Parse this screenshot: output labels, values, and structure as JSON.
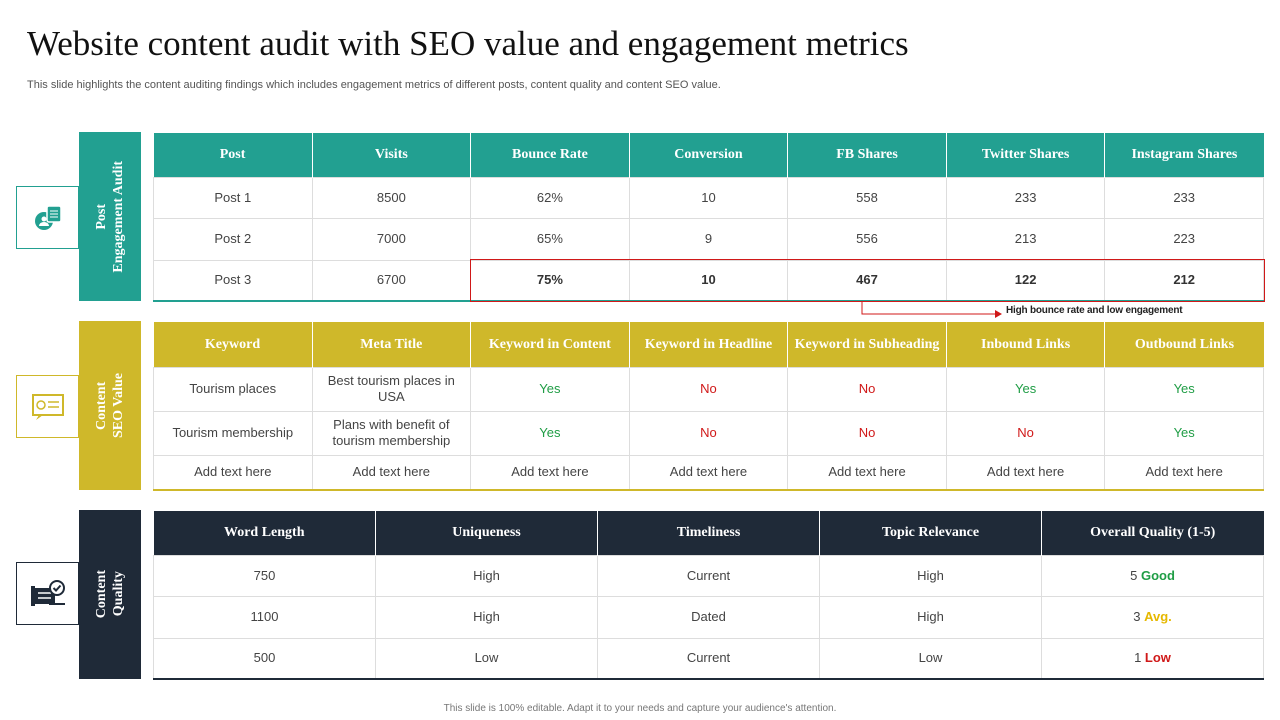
{
  "title": "Website content audit with SEO value and engagement metrics",
  "subtitle": "This slide highlights the content auditing findings which includes engagement metrics of different posts, content quality and content SEO value.",
  "engagement": {
    "label_lines": [
      "Post",
      "Engagement Audit"
    ],
    "headers": [
      "Post",
      "Visits",
      "Bounce Rate",
      "Conversion",
      "FB Shares",
      "Twitter Shares",
      "Instagram Shares"
    ],
    "rows": [
      [
        "Post 1",
        "8500",
        "62%",
        "10",
        "558",
        "233",
        "233"
      ],
      [
        "Post 2",
        "7000",
        "65%",
        "9",
        "556",
        "213",
        "223"
      ],
      [
        "Post 3",
        "6700",
        "75%",
        "10",
        "467",
        "122",
        "212"
      ]
    ],
    "annotation": "High bounce rate and low engagement"
  },
  "seo": {
    "label_lines": [
      "Content",
      "SEO Value"
    ],
    "headers": [
      "Keyword",
      "Meta Title",
      "Keyword in Content",
      "Keyword in Headline",
      "Keyword in Subheading",
      "Inbound Links",
      "Outbound Links"
    ],
    "rows": [
      [
        "Tourism  places",
        "Best tourism places in USA",
        "Yes",
        "No",
        "No",
        "Yes",
        "Yes"
      ],
      [
        "Tourism  membership",
        "Plans with benefit of tourism membership",
        "Yes",
        "No",
        "No",
        "No",
        "Yes"
      ],
      [
        "Add text here",
        "Add text here",
        "Add text here",
        "Add text here",
        "Add text here",
        "Add text here",
        "Add text here"
      ]
    ]
  },
  "quality": {
    "label_lines": [
      "Content",
      "Quality"
    ],
    "headers": [
      "Word Length",
      "Uniqueness",
      "Timeliness",
      "Topic Relevance",
      "Overall Quality (1-5)"
    ],
    "rows": [
      {
        "cells": [
          "750",
          "High",
          "Current",
          "High"
        ],
        "score": "5",
        "rating": "Good"
      },
      {
        "cells": [
          "1100",
          "High",
          "Dated",
          "High"
        ],
        "score": "3",
        "rating": "Avg."
      },
      {
        "cells": [
          "500",
          "Low",
          "Current",
          "Low"
        ],
        "score": "1",
        "rating": "Low"
      }
    ]
  },
  "footer": "This slide is 100% editable. Adapt it to your needs and capture your audience's attention."
}
